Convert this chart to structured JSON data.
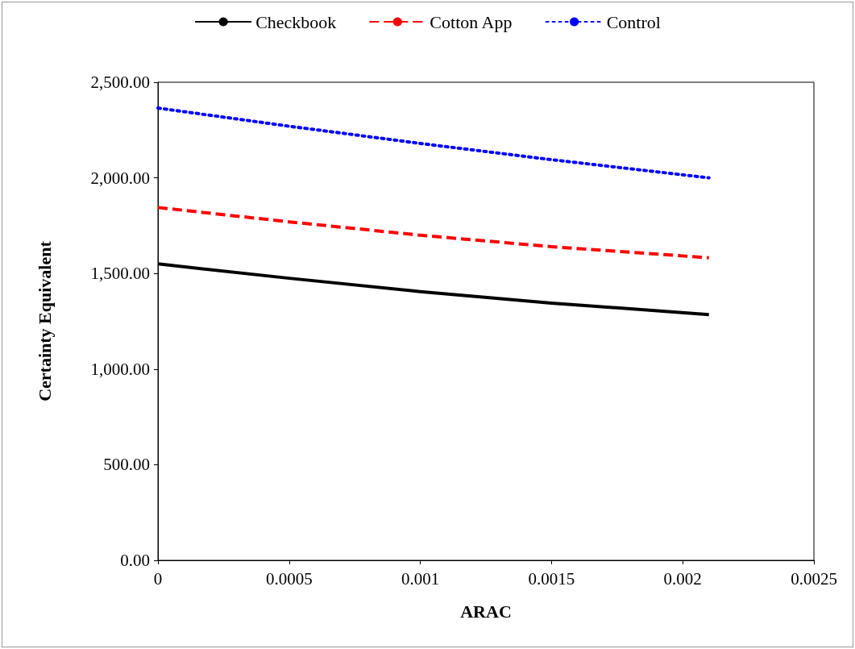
{
  "chart_data": {
    "type": "line",
    "xlabel": "ARAC",
    "ylabel": "Certainty Equivalent",
    "series": [
      {
        "name": "Checkbook",
        "color": "#000000",
        "line_style": "solid",
        "x": [
          0,
          0.0005,
          0.001,
          0.0015,
          0.0021
        ],
        "values": [
          1550,
          1475,
          1405,
          1345,
          1285
        ]
      },
      {
        "name": "Cotton App",
        "color": "#ff0000",
        "line_style": "dashed",
        "x": [
          0,
          0.0005,
          0.001,
          0.0015,
          0.0021
        ],
        "values": [
          1845,
          1770,
          1700,
          1640,
          1582
        ]
      },
      {
        "name": "Control",
        "color": "#0000ff",
        "line_style": "dotted",
        "x": [
          0,
          0.0005,
          0.001,
          0.0015,
          0.0021
        ],
        "values": [
          2365,
          2270,
          2180,
          2095,
          2000
        ]
      }
    ],
    "xlim": [
      0,
      0.0025
    ],
    "xticks": [
      0,
      0.0005,
      0.001,
      0.0015,
      0.002,
      0.0025
    ],
    "ylim": [
      0,
      2500
    ],
    "yticks": [
      {
        "value": 0,
        "label": "0.00"
      },
      {
        "value": 500,
        "label": "500.00"
      },
      {
        "value": 1000,
        "label": "1,000.00"
      },
      {
        "value": 1500,
        "label": "1,500.00"
      },
      {
        "value": 2000,
        "label": "2,000.00"
      },
      {
        "value": 2500,
        "label": "2,500.00"
      }
    ],
    "grid": false,
    "legend": "top",
    "marker": "none"
  }
}
